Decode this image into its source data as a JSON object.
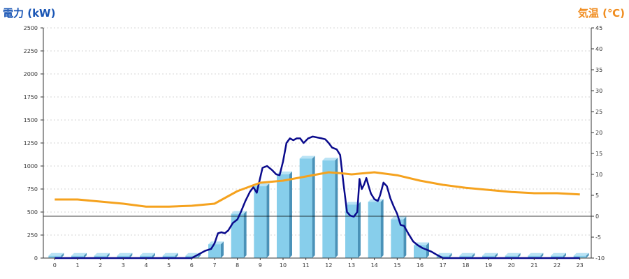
{
  "chart_data": {
    "type": "bar",
    "y_left_title": "電力 (kW)",
    "y_right_title": "気温 (℃)",
    "categories": [
      "0",
      "1",
      "2",
      "3",
      "4",
      "5",
      "6",
      "7",
      "8",
      "9",
      "10",
      "11",
      "12",
      "13",
      "14",
      "15",
      "16",
      "17",
      "18",
      "19",
      "20",
      "21",
      "22",
      "23"
    ],
    "y_left_range": [
      0,
      2500
    ],
    "y_left_ticks": [
      "0",
      "250",
      "500",
      "750",
      "1000",
      "1250",
      "1500",
      "1750",
      "2000",
      "2250",
      "2500"
    ],
    "y_right_range": [
      -10,
      45
    ],
    "y_right_ticks": [
      "-10",
      "-5",
      "0",
      "5",
      "10",
      "15",
      "20",
      "25",
      "30",
      "35",
      "40",
      "45"
    ],
    "grid": "horizontal dashed",
    "legend": "none",
    "series": [
      {
        "kind": "bar",
        "axis": "left",
        "color": "#87ceeb",
        "values": [
          25,
          25,
          25,
          25,
          25,
          25,
          25,
          150,
          480,
          780,
          910,
          1080,
          1060,
          580,
          610,
          420,
          140,
          25,
          25,
          25,
          25,
          25,
          25,
          25
        ]
      },
      {
        "kind": "line",
        "axis": "left",
        "color": "#0a0a8c",
        "x": [
          0,
          1,
          2,
          3,
          4,
          5,
          6,
          6.3,
          6.6,
          6.85,
          7,
          7.15,
          7.3,
          7.45,
          7.6,
          7.8,
          8,
          8.15,
          8.35,
          8.55,
          8.7,
          8.85,
          8.95,
          9.1,
          9.3,
          9.5,
          9.7,
          9.85,
          10,
          10.15,
          10.3,
          10.45,
          10.6,
          10.75,
          10.9,
          11.1,
          11.3,
          11.5,
          11.7,
          11.85,
          12,
          12.15,
          12.35,
          12.5,
          12.65,
          12.8,
          12.95,
          13.1,
          13.25,
          13.35,
          13.45,
          13.55,
          13.65,
          13.75,
          13.85,
          14,
          14.15,
          14.25,
          14.4,
          14.55,
          14.7,
          14.85,
          15,
          15.15,
          15.3,
          15.5,
          15.7,
          15.9,
          16.1,
          16.3,
          16.5,
          16.7,
          17,
          18,
          19,
          20,
          21,
          22,
          23
        ],
        "values": [
          0,
          0,
          0,
          0,
          0,
          0,
          0,
          40,
          80,
          100,
          160,
          270,
          280,
          270,
          300,
          380,
          420,
          500,
          620,
          720,
          770,
          710,
          820,
          980,
          1000,
          960,
          910,
          900,
          1050,
          1250,
          1300,
          1280,
          1300,
          1300,
          1250,
          1300,
          1320,
          1310,
          1300,
          1290,
          1250,
          1200,
          1180,
          1120,
          800,
          500,
          460,
          450,
          500,
          860,
          750,
          800,
          870,
          780,
          700,
          640,
          620,
          680,
          820,
          780,
          650,
          560,
          480,
          360,
          350,
          260,
          180,
          140,
          110,
          90,
          70,
          40,
          0,
          0,
          0,
          0,
          0,
          0,
          0
        ]
      },
      {
        "kind": "line",
        "axis": "right",
        "color": "#f5a21e",
        "x": [
          0,
          1,
          2,
          3,
          4,
          5,
          6,
          7,
          7.5,
          8,
          8.5,
          9,
          10,
          11,
          11.5,
          12,
          12.5,
          13,
          14,
          15,
          16,
          17,
          18,
          19,
          20,
          21,
          22,
          23
        ],
        "values": [
          4,
          4,
          3.5,
          3,
          2.3,
          2.3,
          2.5,
          3,
          4.5,
          6,
          7,
          8,
          8.5,
          9.5,
          10,
          10.5,
          10.3,
          10,
          10.5,
          9.8,
          8.5,
          7.5,
          6.8,
          6.3,
          5.8,
          5.5,
          5.5,
          5.2
        ]
      }
    ]
  }
}
